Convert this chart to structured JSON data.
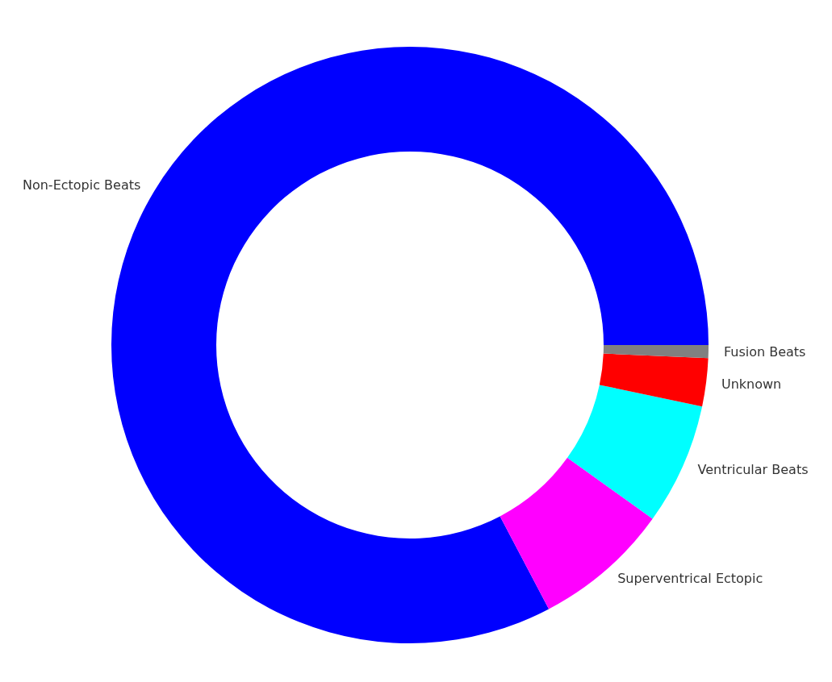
{
  "chart_data": {
    "type": "donut",
    "categories": [
      "Non-Ectopic Beats",
      "Superventrical Ectopic",
      "Ventricular Beats",
      "Unknown",
      "Fusion Beats"
    ],
    "values": [
      82.7,
      7.4,
      6.6,
      2.6,
      0.7
    ],
    "colors": [
      "#0000ff",
      "#ff00ff",
      "#00ffff",
      "#ff0000",
      "#808080"
    ],
    "legend": false
  }
}
